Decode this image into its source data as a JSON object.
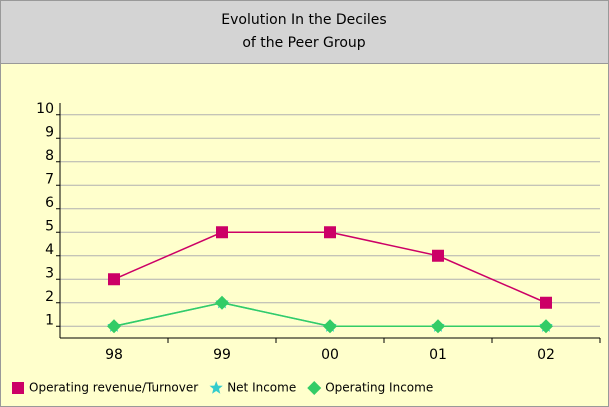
{
  "chart_data": {
    "type": "line",
    "title": "Evolution In the Deciles of the Peer Group",
    "categories": [
      "98",
      "99",
      "00",
      "01",
      "02"
    ],
    "series": [
      {
        "name": "Operating revenue/Turnover",
        "color": "#cc0066",
        "marker": "square",
        "values": [
          3,
          5,
          5,
          4,
          2
        ]
      },
      {
        "name": "Net Income",
        "color": "#33cccc",
        "marker": "star",
        "values": [
          1,
          2,
          1,
          1,
          1
        ]
      },
      {
        "name": "Operating Income",
        "color": "#33cc66",
        "marker": "diamond",
        "values": [
          1,
          2,
          1,
          1,
          1
        ]
      }
    ],
    "ylim": [
      0.5,
      10.5
    ],
    "yticks": [
      1,
      2,
      3,
      4,
      5,
      6,
      7,
      8,
      9,
      10
    ],
    "grid": true
  }
}
